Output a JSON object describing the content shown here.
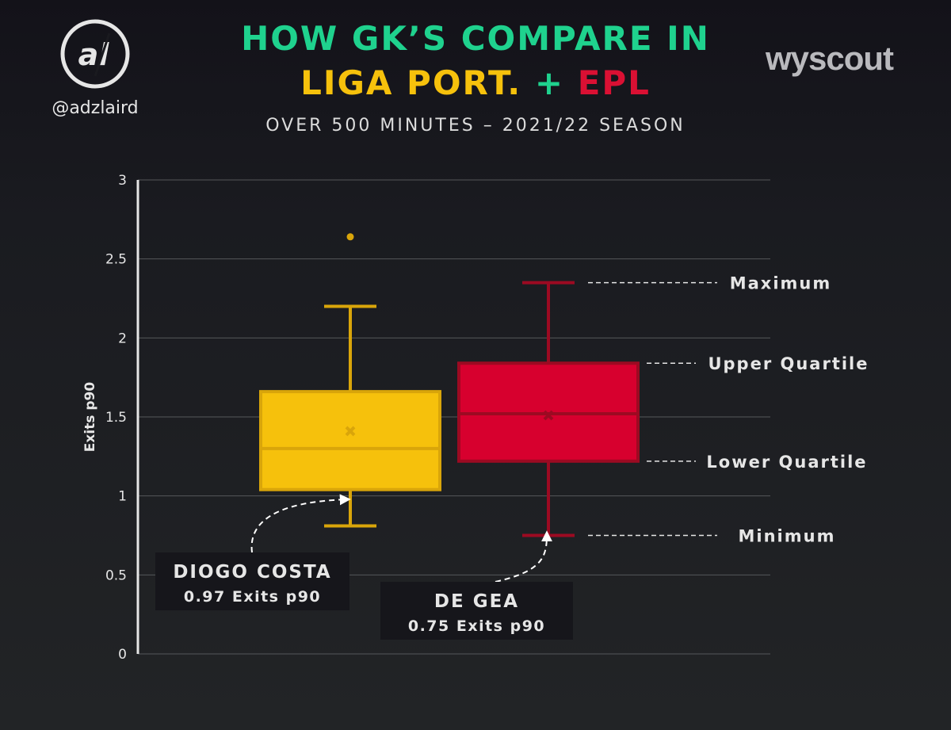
{
  "header": {
    "title_line1": "HOW GK’S COMPARE IN",
    "title_line2_a": "LIGA PORT.",
    "title_line2_plus": "+",
    "title_line2_b": "EPL",
    "subtitle": "OVER 500 MINUTES – 2021/22 SEASON",
    "handle": "@adzlaird",
    "logo_text": "al",
    "brand": "wyscout"
  },
  "colors": {
    "liga": "#f6c10c",
    "liga_edge": "#d9a50a",
    "epl": "#d7002e",
    "epl_edge": "#9c0a22",
    "accent": "#1fd28e"
  },
  "chart_data": {
    "type": "box",
    "title": "HOW GK’S COMPARE IN LIGA PORT. + EPL",
    "ylabel": "Exits p90",
    "ylim": [
      0,
      3
    ],
    "yticks": [
      0,
      0.5,
      1,
      1.5,
      2,
      2.5,
      3
    ],
    "ytick_labels": [
      "0",
      "0.5",
      "1",
      "1.5",
      "2",
      "2.5",
      "3"
    ],
    "grid": true,
    "series": [
      {
        "name": "Liga Portugal",
        "min": 0.81,
        "q1": 1.04,
        "median": 1.3,
        "q3": 1.66,
        "max": 2.2,
        "mean": 1.41,
        "outliers": [
          2.64
        ]
      },
      {
        "name": "EPL",
        "min": 0.75,
        "q1": 1.22,
        "median": 1.52,
        "q3": 1.84,
        "max": 2.35,
        "mean": 1.51,
        "outliers": []
      }
    ],
    "annotations": [
      {
        "text": "Maximum",
        "value": 2.35
      },
      {
        "text": "Upper  Quartile",
        "value": 1.84
      },
      {
        "text": "Lower  Quartile",
        "value": 1.22
      },
      {
        "text": "Minimum",
        "value": 0.75
      }
    ],
    "callouts": [
      {
        "name": "DIOGO COSTA",
        "value_text": "0.97 Exits p90",
        "value": 0.97,
        "series": "Liga Portugal"
      },
      {
        "name": "DE GEA",
        "value_text": "0.75 Exits p90",
        "value": 0.75,
        "series": "EPL"
      }
    ]
  }
}
